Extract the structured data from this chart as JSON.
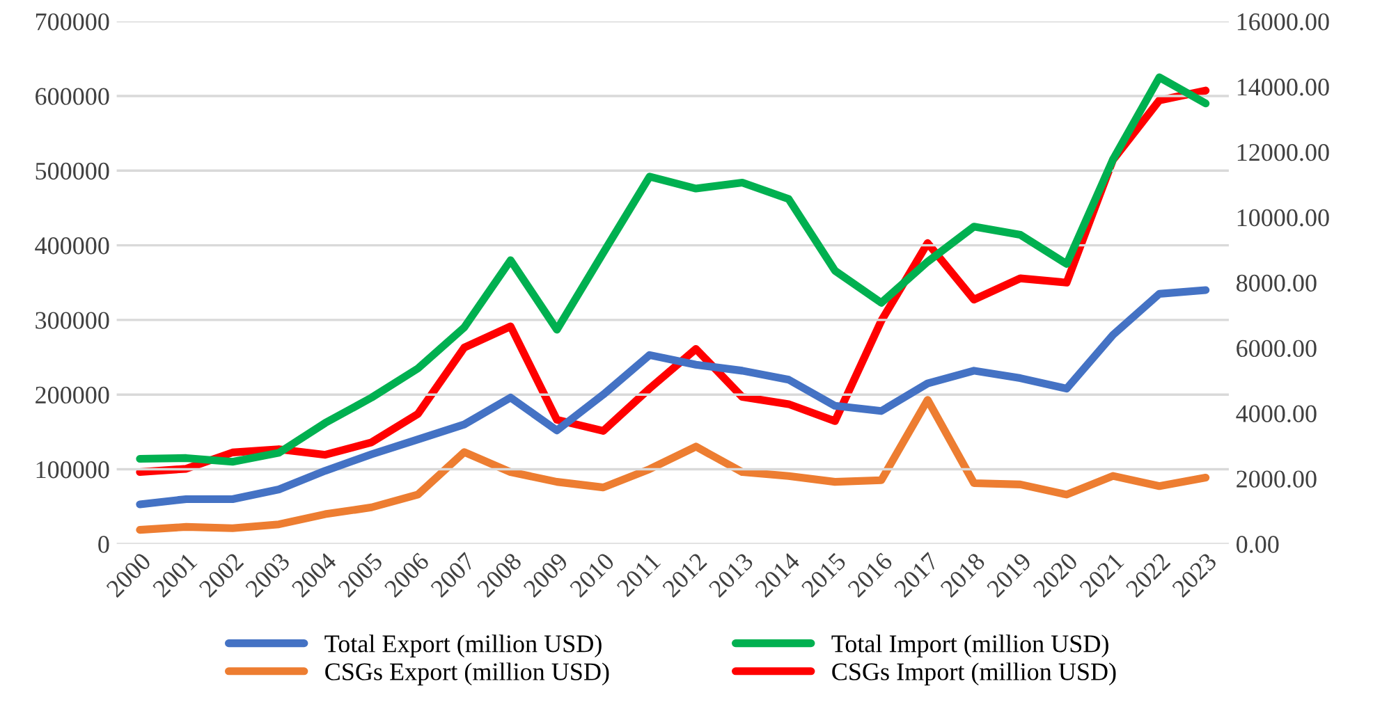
{
  "chart_data": {
    "type": "line",
    "categories": [
      "2000",
      "2001",
      "2002",
      "2003",
      "2004",
      "2005",
      "2006",
      "2007",
      "2008",
      "2009",
      "2010",
      "2011",
      "2012",
      "2013",
      "2014",
      "2015",
      "2016",
      "2017",
      "2018",
      "2019",
      "2020",
      "2021",
      "2022",
      "2023"
    ],
    "series": [
      {
        "name": "Total Export (million USD)",
        "color": "#4472c4",
        "values": [
          53000,
          60000,
          60000,
          73000,
          98000,
          120000,
          140000,
          160000,
          196000,
          152000,
          200000,
          253000,
          240000,
          232000,
          220000,
          185000,
          178000,
          215000,
          232000,
          222000,
          208000,
          280000,
          335000,
          340000
        ]
      },
      {
        "name": "Total Import (million USD)",
        "color": "#00b050",
        "values": [
          114000,
          115000,
          110000,
          122000,
          162000,
          196000,
          235000,
          290000,
          380000,
          287000,
          390000,
          492000,
          476000,
          484000,
          462000,
          366000,
          323000,
          378000,
          425000,
          414000,
          375000,
          515000,
          625000,
          590000
        ]
      },
      {
        "name": "CSGs Export (million USD)",
        "color": "#ed7d31",
        "axis": "y2",
        "values": [
          430,
          520,
          480,
          600,
          910,
          1120,
          1510,
          2810,
          2200,
          1900,
          1730,
          2290,
          2980,
          2200,
          2080,
          1900,
          1950,
          4410,
          1860,
          1820,
          1510,
          2080,
          1770,
          2030
        ]
      },
      {
        "name": "CSGs Import (million USD)",
        "color": "#ff0000",
        "axis": "y2",
        "values": [
          2200,
          2300,
          2800,
          2900,
          2730,
          3110,
          3980,
          6010,
          6660,
          3800,
          3460,
          4760,
          5970,
          4500,
          4280,
          3760,
          6830,
          9210,
          7480,
          8130,
          8000,
          11760,
          13580,
          13880
        ]
      }
    ],
    "ylim": [
      0,
      700000
    ],
    "yticks": [
      0,
      100000,
      200000,
      300000,
      400000,
      500000,
      600000,
      700000
    ],
    "y2lim": [
      0,
      16000
    ],
    "y2ticks": [
      {
        "value": 0,
        "label": "0.00"
      },
      {
        "value": 2000,
        "label": "2000.00"
      },
      {
        "value": 4000,
        "label": "4000.00"
      },
      {
        "value": 6000,
        "label": "6000.00"
      },
      {
        "value": 8000,
        "label": "8000.00"
      },
      {
        "value": 10000,
        "label": "10000.00"
      },
      {
        "value": 12000,
        "label": "12000.00"
      },
      {
        "value": 14000,
        "label": "14000.00"
      },
      {
        "value": 16000,
        "label": "16000.00"
      }
    ],
    "grid": "y",
    "legend": "bottom",
    "marker": "none",
    "line_style": "solid"
  }
}
